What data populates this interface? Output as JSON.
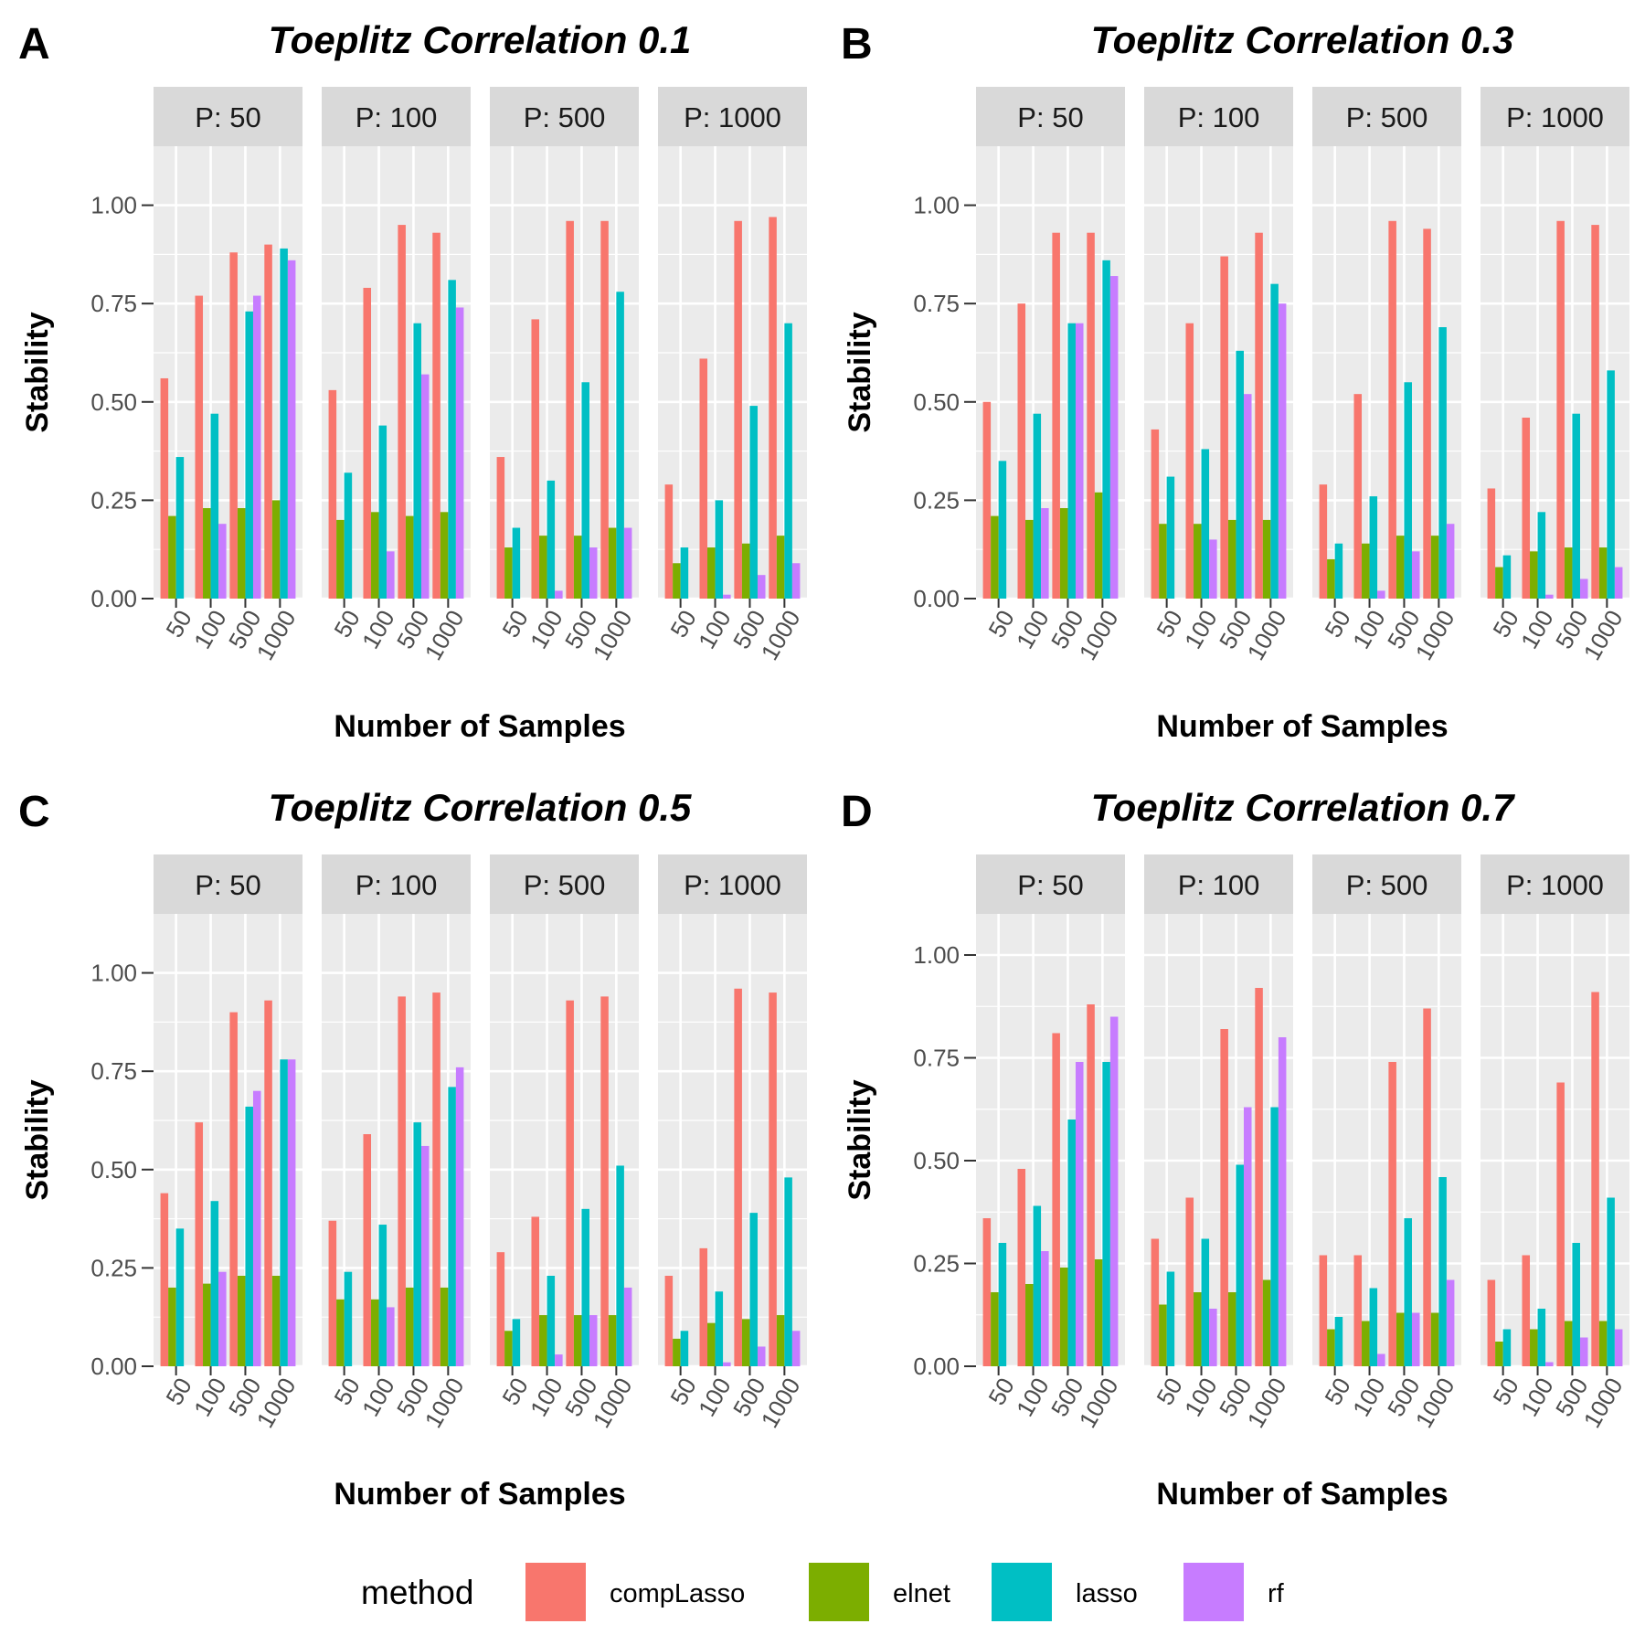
{
  "legend": {
    "title": "method",
    "entries": [
      {
        "name": "compLasso",
        "color": "#F8766D"
      },
      {
        "name": "elnet",
        "color": "#7CAE00"
      },
      {
        "name": "lasso",
        "color": "#00BFC4"
      },
      {
        "name": "rf",
        "color": "#C77CFF"
      }
    ]
  },
  "chart_data": [
    {
      "type": "bar",
      "panel_letter": "A",
      "title": "Toeplitz Correlation 0.1",
      "xlabel": "Number of Samples",
      "ylabel": "Stability",
      "ylim": [
        0,
        1.15
      ],
      "yticks": [
        "0.00",
        "0.25",
        "0.50",
        "0.75",
        "1.00"
      ],
      "categories": [
        "50",
        "100",
        "500",
        "1000"
      ],
      "facets": [
        {
          "label": "P: 50",
          "series": [
            {
              "name": "compLasso",
              "values": [
                0.56,
                0.77,
                0.88,
                0.9
              ]
            },
            {
              "name": "elnet",
              "values": [
                0.21,
                0.23,
                0.23,
                0.25
              ]
            },
            {
              "name": "lasso",
              "values": [
                0.36,
                0.47,
                0.73,
                0.89
              ]
            },
            {
              "name": "rf",
              "values": [
                0.0,
                0.19,
                0.77,
                0.86
              ]
            }
          ]
        },
        {
          "label": "P: 100",
          "series": [
            {
              "name": "compLasso",
              "values": [
                0.53,
                0.79,
                0.95,
                0.93
              ]
            },
            {
              "name": "elnet",
              "values": [
                0.2,
                0.22,
                0.21,
                0.22
              ]
            },
            {
              "name": "lasso",
              "values": [
                0.32,
                0.44,
                0.7,
                0.81
              ]
            },
            {
              "name": "rf",
              "values": [
                0.0,
                0.12,
                0.57,
                0.74
              ]
            }
          ]
        },
        {
          "label": "P: 500",
          "series": [
            {
              "name": "compLasso",
              "values": [
                0.36,
                0.71,
                0.96,
                0.96
              ]
            },
            {
              "name": "elnet",
              "values": [
                0.13,
                0.16,
                0.16,
                0.18
              ]
            },
            {
              "name": "lasso",
              "values": [
                0.18,
                0.3,
                0.55,
                0.78
              ]
            },
            {
              "name": "rf",
              "values": [
                0.0,
                0.02,
                0.13,
                0.18
              ]
            }
          ]
        },
        {
          "label": "P: 1000",
          "series": [
            {
              "name": "compLasso",
              "values": [
                0.29,
                0.61,
                0.96,
                0.97
              ]
            },
            {
              "name": "elnet",
              "values": [
                0.09,
                0.13,
                0.14,
                0.16
              ]
            },
            {
              "name": "lasso",
              "values": [
                0.13,
                0.25,
                0.49,
                0.7
              ]
            },
            {
              "name": "rf",
              "values": [
                0.0,
                0.01,
                0.06,
                0.09
              ]
            }
          ]
        }
      ]
    },
    {
      "type": "bar",
      "panel_letter": "B",
      "title": "Toeplitz Correlation 0.3",
      "xlabel": "Number of Samples",
      "ylabel": "Stability",
      "ylim": [
        0,
        1.15
      ],
      "yticks": [
        "0.00",
        "0.25",
        "0.50",
        "0.75",
        "1.00"
      ],
      "categories": [
        "50",
        "100",
        "500",
        "1000"
      ],
      "facets": [
        {
          "label": "P: 50",
          "series": [
            {
              "name": "compLasso",
              "values": [
                0.5,
                0.75,
                0.93,
                0.93
              ]
            },
            {
              "name": "elnet",
              "values": [
                0.21,
                0.2,
                0.23,
                0.27
              ]
            },
            {
              "name": "lasso",
              "values": [
                0.35,
                0.47,
                0.7,
                0.86
              ]
            },
            {
              "name": "rf",
              "values": [
                0.0,
                0.23,
                0.7,
                0.82
              ]
            }
          ]
        },
        {
          "label": "P: 100",
          "series": [
            {
              "name": "compLasso",
              "values": [
                0.43,
                0.7,
                0.87,
                0.93
              ]
            },
            {
              "name": "elnet",
              "values": [
                0.19,
                0.19,
                0.2,
                0.2
              ]
            },
            {
              "name": "lasso",
              "values": [
                0.31,
                0.38,
                0.63,
                0.8
              ]
            },
            {
              "name": "rf",
              "values": [
                0.0,
                0.15,
                0.52,
                0.75
              ]
            }
          ]
        },
        {
          "label": "P: 500",
          "series": [
            {
              "name": "compLasso",
              "values": [
                0.29,
                0.52,
                0.96,
                0.94
              ]
            },
            {
              "name": "elnet",
              "values": [
                0.1,
                0.14,
                0.16,
                0.16
              ]
            },
            {
              "name": "lasso",
              "values": [
                0.14,
                0.26,
                0.55,
                0.69
              ]
            },
            {
              "name": "rf",
              "values": [
                0.0,
                0.02,
                0.12,
                0.19
              ]
            }
          ]
        },
        {
          "label": "P: 1000",
          "series": [
            {
              "name": "compLasso",
              "values": [
                0.28,
                0.46,
                0.96,
                0.95
              ]
            },
            {
              "name": "elnet",
              "values": [
                0.08,
                0.12,
                0.13,
                0.13
              ]
            },
            {
              "name": "lasso",
              "values": [
                0.11,
                0.22,
                0.47,
                0.58
              ]
            },
            {
              "name": "rf",
              "values": [
                0.0,
                0.01,
                0.05,
                0.08
              ]
            }
          ]
        }
      ]
    },
    {
      "type": "bar",
      "panel_letter": "C",
      "title": "Toeplitz Correlation 0.5",
      "xlabel": "Number of Samples",
      "ylabel": "Stability",
      "ylim": [
        0,
        1.15
      ],
      "yticks": [
        "0.00",
        "0.25",
        "0.50",
        "0.75",
        "1.00"
      ],
      "categories": [
        "50",
        "100",
        "500",
        "1000"
      ],
      "facets": [
        {
          "label": "P: 50",
          "series": [
            {
              "name": "compLasso",
              "values": [
                0.44,
                0.62,
                0.9,
                0.93
              ]
            },
            {
              "name": "elnet",
              "values": [
                0.2,
                0.21,
                0.23,
                0.23
              ]
            },
            {
              "name": "lasso",
              "values": [
                0.35,
                0.42,
                0.66,
                0.78
              ]
            },
            {
              "name": "rf",
              "values": [
                0.0,
                0.24,
                0.7,
                0.78
              ]
            }
          ]
        },
        {
          "label": "P: 100",
          "series": [
            {
              "name": "compLasso",
              "values": [
                0.37,
                0.59,
                0.94,
                0.95
              ]
            },
            {
              "name": "elnet",
              "values": [
                0.17,
                0.17,
                0.2,
                0.2
              ]
            },
            {
              "name": "lasso",
              "values": [
                0.24,
                0.36,
                0.62,
                0.71
              ]
            },
            {
              "name": "rf",
              "values": [
                0.0,
                0.15,
                0.56,
                0.76
              ]
            }
          ]
        },
        {
          "label": "P: 500",
          "series": [
            {
              "name": "compLasso",
              "values": [
                0.29,
                0.38,
                0.93,
                0.94
              ]
            },
            {
              "name": "elnet",
              "values": [
                0.09,
                0.13,
                0.13,
                0.13
              ]
            },
            {
              "name": "lasso",
              "values": [
                0.12,
                0.23,
                0.4,
                0.51
              ]
            },
            {
              "name": "rf",
              "values": [
                0.0,
                0.03,
                0.13,
                0.2
              ]
            }
          ]
        },
        {
          "label": "P: 1000",
          "series": [
            {
              "name": "compLasso",
              "values": [
                0.23,
                0.3,
                0.96,
                0.95
              ]
            },
            {
              "name": "elnet",
              "values": [
                0.07,
                0.11,
                0.12,
                0.13
              ]
            },
            {
              "name": "lasso",
              "values": [
                0.09,
                0.19,
                0.39,
                0.48
              ]
            },
            {
              "name": "rf",
              "values": [
                0.0,
                0.01,
                0.05,
                0.09
              ]
            }
          ]
        }
      ]
    },
    {
      "type": "bar",
      "panel_letter": "D",
      "title": "Toeplitz Correlation 0.7",
      "xlabel": "Number of Samples",
      "ylabel": "Stability",
      "ylim": [
        0,
        1.1
      ],
      "yticks": [
        "0.00",
        "0.25",
        "0.50",
        "0.75",
        "1.00"
      ],
      "categories": [
        "50",
        "100",
        "500",
        "1000"
      ],
      "facets": [
        {
          "label": "P: 50",
          "series": [
            {
              "name": "compLasso",
              "values": [
                0.36,
                0.48,
                0.81,
                0.88
              ]
            },
            {
              "name": "elnet",
              "values": [
                0.18,
                0.2,
                0.24,
                0.26
              ]
            },
            {
              "name": "lasso",
              "values": [
                0.3,
                0.39,
                0.6,
                0.74
              ]
            },
            {
              "name": "rf",
              "values": [
                0.0,
                0.28,
                0.74,
                0.85
              ]
            }
          ]
        },
        {
          "label": "P: 100",
          "series": [
            {
              "name": "compLasso",
              "values": [
                0.31,
                0.41,
                0.82,
                0.92
              ]
            },
            {
              "name": "elnet",
              "values": [
                0.15,
                0.18,
                0.18,
                0.21
              ]
            },
            {
              "name": "lasso",
              "values": [
                0.23,
                0.31,
                0.49,
                0.63
              ]
            },
            {
              "name": "rf",
              "values": [
                0.0,
                0.14,
                0.63,
                0.8
              ]
            }
          ]
        },
        {
          "label": "P: 500",
          "series": [
            {
              "name": "compLasso",
              "values": [
                0.27,
                0.27,
                0.74,
                0.87
              ]
            },
            {
              "name": "elnet",
              "values": [
                0.09,
                0.11,
                0.13,
                0.13
              ]
            },
            {
              "name": "lasso",
              "values": [
                0.12,
                0.19,
                0.36,
                0.46
              ]
            },
            {
              "name": "rf",
              "values": [
                0.0,
                0.03,
                0.13,
                0.21
              ]
            }
          ]
        },
        {
          "label": "P: 1000",
          "series": [
            {
              "name": "compLasso",
              "values": [
                0.21,
                0.27,
                0.69,
                0.91
              ]
            },
            {
              "name": "elnet",
              "values": [
                0.06,
                0.09,
                0.11,
                0.11
              ]
            },
            {
              "name": "lasso",
              "values": [
                0.09,
                0.14,
                0.3,
                0.41
              ]
            },
            {
              "name": "rf",
              "values": [
                0.0,
                0.01,
                0.07,
                0.09
              ]
            }
          ]
        }
      ]
    }
  ]
}
